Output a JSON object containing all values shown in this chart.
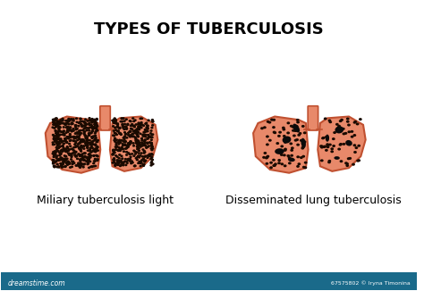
{
  "title": "TYPES OF TUBERCULOSIS",
  "label_left": "Miliary tuberculosis light",
  "label_right": "Disseminated lung tuberculosis",
  "lung_color": "#E8896A",
  "lung_edge_color": "#C05030",
  "bg_color": "#FFFFFF",
  "trachea_color": "#E8896A",
  "trachea_edge": "#C05030",
  "dot_color": "#1A0A00",
  "patch_color": "#0A0A0A",
  "title_fontsize": 13,
  "label_fontsize": 9,
  "watermark_text": "dreamstime.com",
  "watermark_id": "67575802 © Iryna Timonina",
  "bottom_bar_color": "#1A6A8A"
}
